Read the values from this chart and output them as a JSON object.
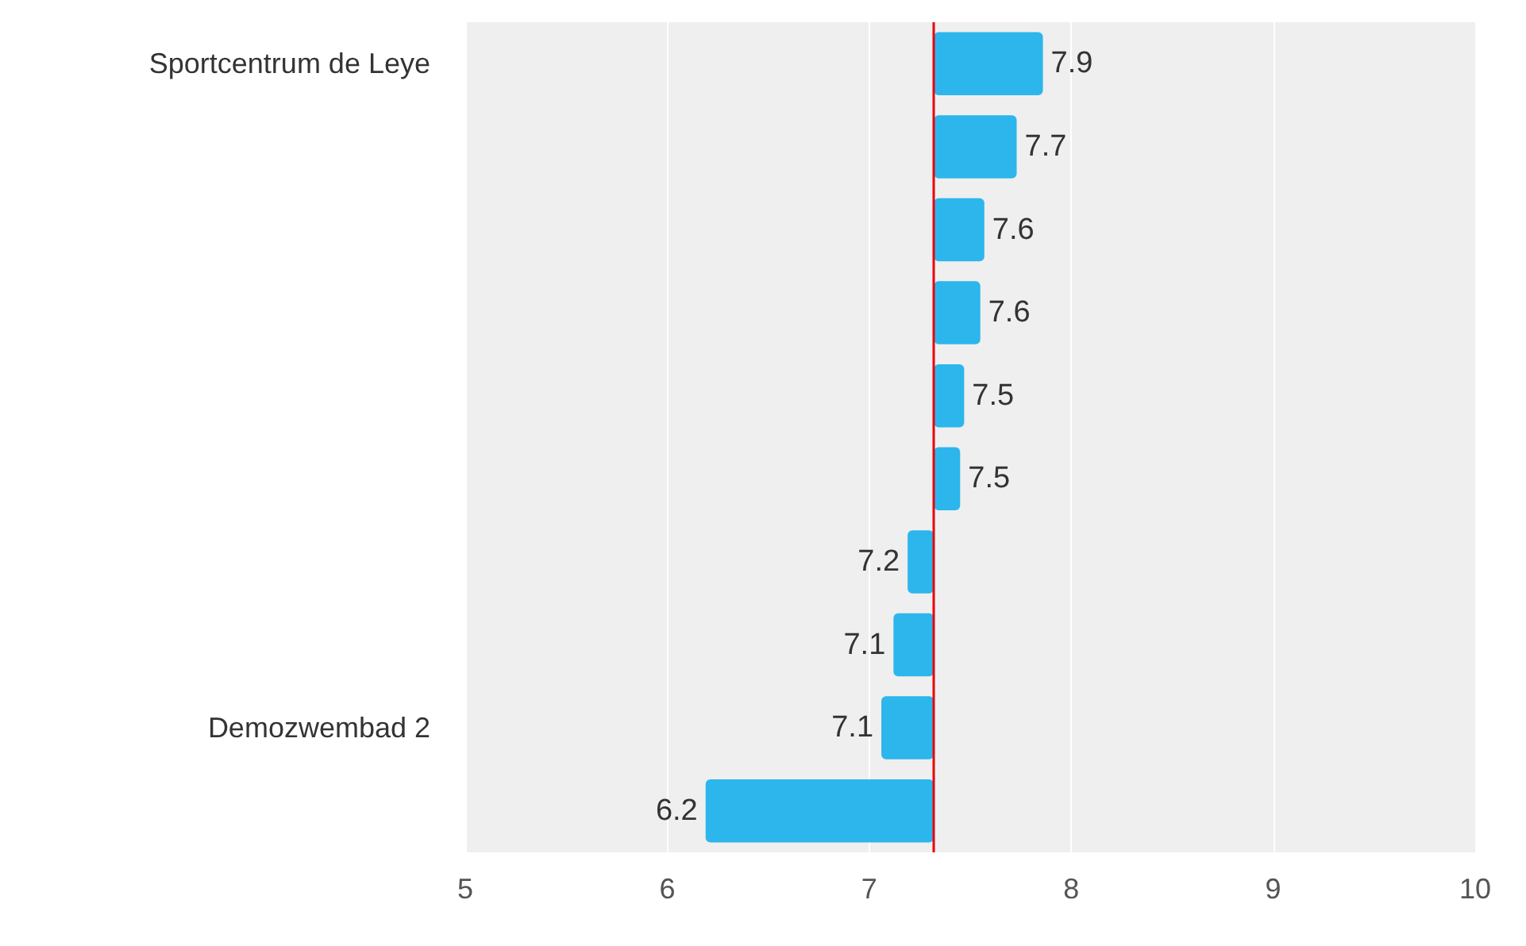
{
  "chart_data": {
    "type": "bar",
    "orientation": "horizontal",
    "categories": [
      "Sportcentrum de Leye",
      null,
      null,
      null,
      null,
      null,
      null,
      null,
      "Demozwembad 2",
      null
    ],
    "base": [
      7.32,
      7.32,
      7.32,
      7.32,
      7.32,
      7.32,
      7.32,
      7.32,
      7.32,
      7.32
    ],
    "values": [
      0.54,
      0.41,
      0.25,
      0.23,
      0.15,
      0.13,
      -0.13,
      -0.2,
      -0.26,
      -1.13
    ],
    "value_labels": [
      "7.9",
      "7.7",
      "7.6",
      "7.6",
      "7.5",
      "7.5",
      "7.2",
      "7.1",
      "7.1",
      "6.2"
    ],
    "color": "#2db6ec",
    "xlim": [
      5,
      10
    ],
    "xticks": [
      5,
      6,
      7,
      8,
      9,
      10
    ],
    "grid": "x",
    "ref_lines": [
      {
        "axis": "x",
        "value": 7.32,
        "color": "#e8000b"
      }
    ]
  }
}
